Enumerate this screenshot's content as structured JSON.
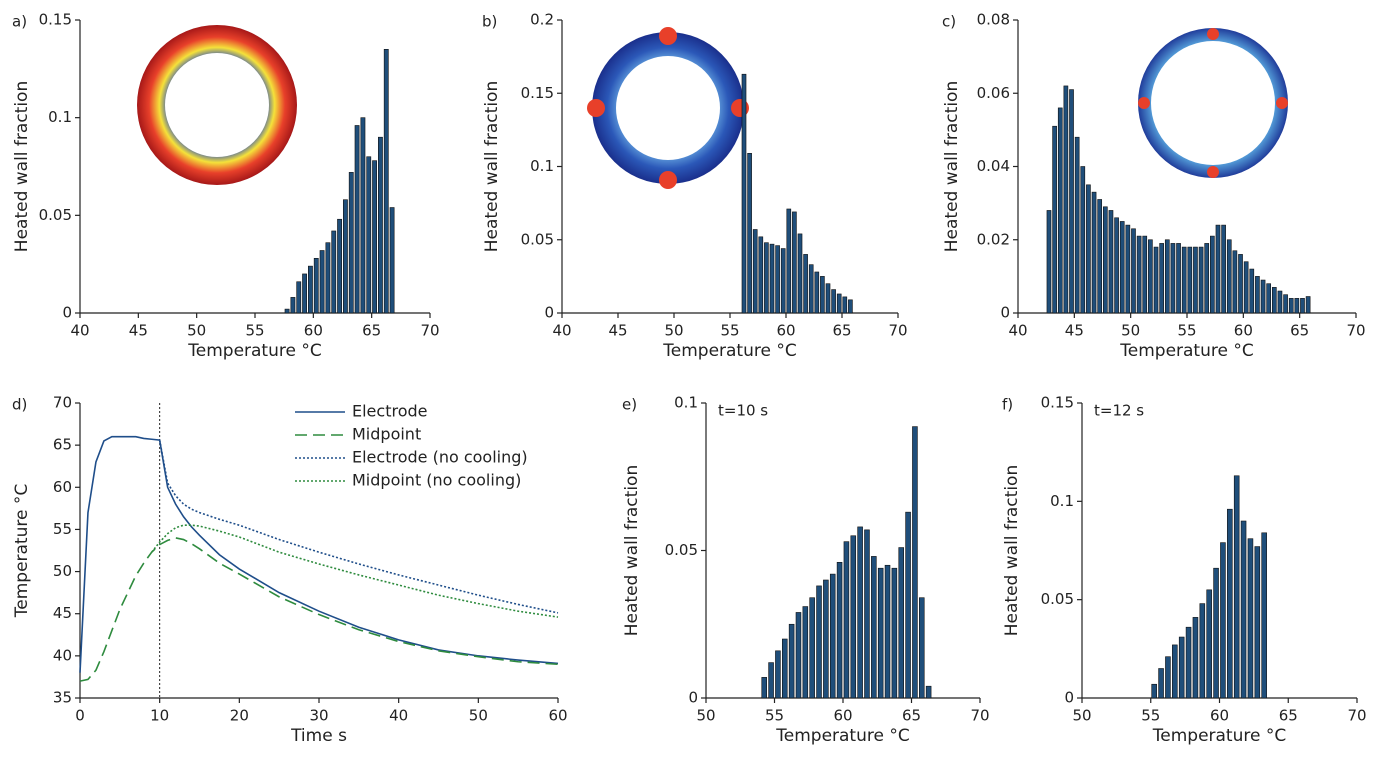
{
  "chart_data": [
    {
      "type": "bar",
      "panel_label": "a)",
      "xlabel": "Temperature °C",
      "ylabel": "Heated wall fraction",
      "color": "#1f4e7a",
      "x": [
        57.75,
        58.25,
        58.75,
        59.25,
        59.75,
        60.25,
        60.75,
        61.25,
        61.75,
        62.25,
        62.75,
        63.25,
        63.75,
        64.25,
        64.75,
        65.25,
        65.75,
        66.25,
        66.75
      ],
      "values": [
        0.002,
        0.008,
        0.016,
        0.02,
        0.024,
        0.028,
        0.032,
        0.036,
        0.042,
        0.048,
        0.058,
        0.072,
        0.096,
        0.1,
        0.08,
        0.078,
        0.09,
        0.135,
        0.054
      ],
      "xlim": [
        40,
        70
      ],
      "xticks": [
        40,
        45,
        50,
        55,
        60,
        65,
        70
      ],
      "ylim": [
        0,
        0.15
      ],
      "yticks": [
        0,
        0.05,
        0.1,
        0.15
      ]
    },
    {
      "type": "bar",
      "panel_label": "b)",
      "xlabel": "Temperature °C",
      "ylabel": "Heated wall fraction",
      "color": "#1f4e7a",
      "x": [
        56.25,
        56.75,
        57.25,
        57.75,
        58.25,
        58.75,
        59.25,
        59.75,
        60.25,
        60.75,
        61.25,
        61.75,
        62.25,
        62.75,
        63.25,
        63.75,
        64.25,
        64.75,
        65.25,
        65.75
      ],
      "values": [
        0.163,
        0.109,
        0.057,
        0.052,
        0.048,
        0.047,
        0.046,
        0.044,
        0.071,
        0.069,
        0.054,
        0.04,
        0.033,
        0.028,
        0.025,
        0.02,
        0.016,
        0.013,
        0.011,
        0.009
      ],
      "xlim": [
        40,
        70
      ],
      "xticks": [
        40,
        45,
        50,
        55,
        60,
        65,
        70
      ],
      "ylim": [
        0,
        0.2
      ],
      "yticks": [
        0,
        0.05,
        0.1,
        0.15,
        0.2
      ]
    },
    {
      "type": "bar",
      "panel_label": "c)",
      "xlabel": "Temperature °C",
      "ylabel": "Heated wall fraction",
      "color": "#1f4e7a",
      "x": [
        42.75,
        43.25,
        43.75,
        44.25,
        44.75,
        45.25,
        45.75,
        46.25,
        46.75,
        47.25,
        47.75,
        48.25,
        48.75,
        49.25,
        49.75,
        50.25,
        50.75,
        51.25,
        51.75,
        52.25,
        52.75,
        53.25,
        53.75,
        54.25,
        54.75,
        55.25,
        55.75,
        56.25,
        56.75,
        57.25,
        57.75,
        58.25,
        58.75,
        59.25,
        59.75,
        60.25,
        60.75,
        61.25,
        61.75,
        62.25,
        62.75,
        63.25,
        63.75,
        64.25,
        64.75,
        65.25,
        65.75
      ],
      "values": [
        0.028,
        0.051,
        0.056,
        0.062,
        0.061,
        0.048,
        0.04,
        0.035,
        0.033,
        0.031,
        0.029,
        0.028,
        0.026,
        0.025,
        0.024,
        0.023,
        0.021,
        0.021,
        0.02,
        0.018,
        0.019,
        0.02,
        0.019,
        0.019,
        0.018,
        0.018,
        0.018,
        0.018,
        0.019,
        0.021,
        0.024,
        0.024,
        0.02,
        0.017,
        0.016,
        0.014,
        0.012,
        0.01,
        0.009,
        0.008,
        0.007,
        0.006,
        0.005,
        0.004,
        0.004,
        0.004,
        0.0045
      ],
      "xlim": [
        40,
        70
      ],
      "xticks": [
        40,
        45,
        50,
        55,
        60,
        65,
        70
      ],
      "ylim": [
        0,
        0.08
      ],
      "yticks": [
        0,
        0.02,
        0.04,
        0.06,
        0.08
      ]
    },
    {
      "type": "line",
      "panel_label": "d)",
      "xlabel": "Time s",
      "ylabel": "Temperature °C",
      "x": [
        0,
        1,
        2,
        3,
        4,
        5,
        6,
        7,
        8,
        9,
        10,
        11,
        12,
        13,
        14,
        15,
        17.5,
        20,
        25,
        30,
        35,
        40,
        45,
        50,
        55,
        60
      ],
      "series": [
        {
          "name": "Electrode",
          "color": "#1f4e8a",
          "dash": "solid",
          "values": [
            38,
            57,
            63,
            65.5,
            66,
            66,
            66,
            66,
            65.8,
            65.7,
            65.6,
            60,
            58,
            56.5,
            55.3,
            54.3,
            52,
            50.3,
            47.5,
            45.3,
            43.4,
            41.9,
            40.7,
            40,
            39.5,
            39.1
          ]
        },
        {
          "name": "Midpoint",
          "color": "#2e8b3e",
          "dash": "dashed",
          "values": [
            37,
            37.2,
            38.3,
            40.5,
            43,
            45.5,
            47.5,
            49.5,
            51,
            52.3,
            53.2,
            53.7,
            54,
            53.8,
            53.3,
            52.7,
            51,
            49.7,
            47,
            44.9,
            43.1,
            41.7,
            40.6,
            39.9,
            39.3,
            39
          ]
        },
        {
          "name": "Electrode (no cooling)",
          "color": "#1f4e8a",
          "dash": "dotted",
          "values": [
            null,
            null,
            null,
            null,
            null,
            null,
            null,
            null,
            null,
            null,
            65.6,
            60.5,
            59,
            58,
            57.4,
            57,
            56.2,
            55.5,
            53.8,
            52.3,
            50.9,
            49.6,
            48.4,
            47.2,
            46.1,
            45.1
          ]
        },
        {
          "name": "Midpoint (no cooling)",
          "color": "#2e8b3e",
          "dash": "dotted",
          "values": [
            null,
            null,
            null,
            null,
            null,
            null,
            null,
            null,
            null,
            52.3,
            53.5,
            54.5,
            55.2,
            55.5,
            55.5,
            55.4,
            54.8,
            54.1,
            52.3,
            50.9,
            49.6,
            48.4,
            47.2,
            46.2,
            45.3,
            44.6
          ]
        }
      ],
      "vlines": [
        10
      ],
      "legend": "top-right",
      "xlim": [
        0,
        60
      ],
      "xticks": [
        0,
        10,
        20,
        30,
        40,
        50,
        60
      ],
      "ylim": [
        35,
        70
      ],
      "yticks": [
        35,
        40,
        45,
        50,
        55,
        60,
        65,
        70
      ]
    },
    {
      "type": "bar",
      "panel_label": "e)",
      "annotation": "t=10 s",
      "xlabel": "Temperature °C",
      "ylabel": "Heated wall fraction",
      "color": "#1f4e7a",
      "x": [
        54.25,
        54.75,
        55.25,
        55.75,
        56.25,
        56.75,
        57.25,
        57.75,
        58.25,
        58.75,
        59.25,
        59.75,
        60.25,
        60.75,
        61.25,
        61.75,
        62.25,
        62.75,
        63.25,
        63.75,
        64.25,
        64.75,
        65.25,
        65.75,
        66.25
      ],
      "values": [
        0.007,
        0.012,
        0.016,
        0.02,
        0.025,
        0.029,
        0.031,
        0.034,
        0.038,
        0.04,
        0.042,
        0.046,
        0.053,
        0.055,
        0.058,
        0.057,
        0.048,
        0.044,
        0.045,
        0.044,
        0.051,
        0.063,
        0.092,
        0.034,
        0.004
      ],
      "xlim": [
        50,
        70
      ],
      "xticks": [
        50,
        55,
        60,
        65,
        70
      ],
      "ylim": [
        0,
        0.1
      ],
      "yticks": [
        0,
        0.05,
        0.1
      ]
    },
    {
      "type": "bar",
      "panel_label": "f)",
      "annotation": "t=12 s",
      "xlabel": "Temperature °C",
      "ylabel": "Heated wall fraction",
      "color": "#1f4e7a",
      "x": [
        55.25,
        55.75,
        56.25,
        56.75,
        57.25,
        57.75,
        58.25,
        58.75,
        59.25,
        59.75,
        60.25,
        60.75,
        61.25,
        61.75,
        62.25,
        62.75,
        63.25
      ],
      "values": [
        0.007,
        0.015,
        0.021,
        0.027,
        0.031,
        0.036,
        0.041,
        0.048,
        0.055,
        0.066,
        0.079,
        0.096,
        0.113,
        0.09,
        0.081,
        0.077,
        0.084
      ],
      "xlim": [
        50,
        70
      ],
      "xticks": [
        50,
        55,
        60,
        65,
        70
      ],
      "ylim": [
        0,
        0.15
      ],
      "yticks": [
        0,
        0.05,
        0.1,
        0.15
      ]
    }
  ]
}
